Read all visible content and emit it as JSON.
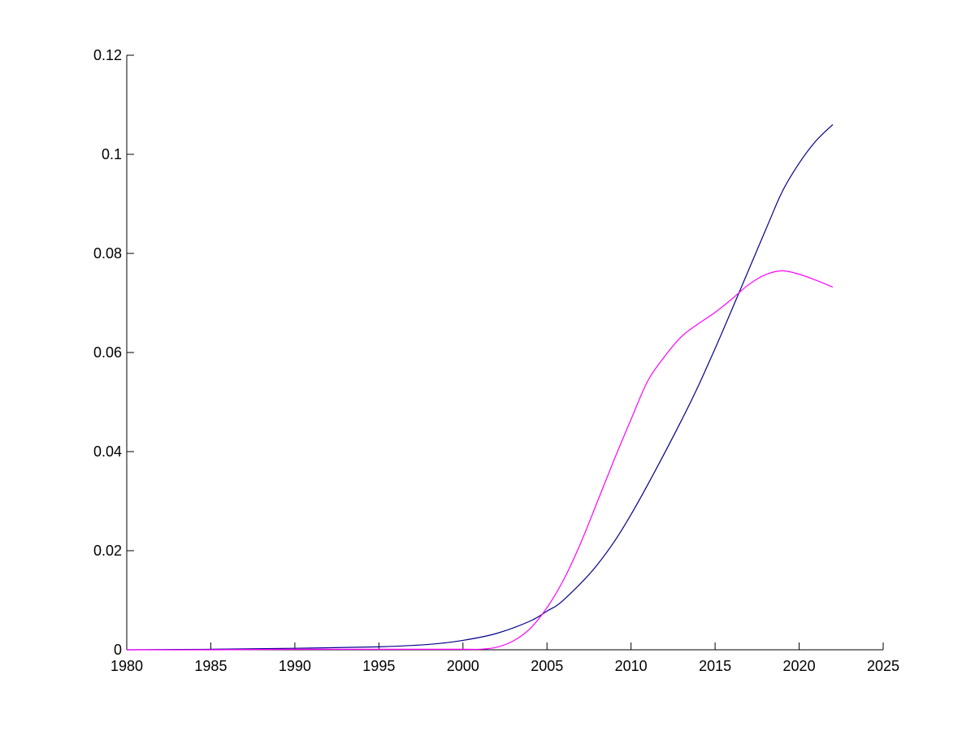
{
  "chart_data": {
    "type": "line",
    "title": "",
    "xlabel": "",
    "ylabel": "",
    "xlim": [
      1980,
      2025
    ],
    "ylim": [
      0,
      0.12
    ],
    "xticks": [
      1980,
      1985,
      1990,
      1995,
      2000,
      2005,
      2010,
      2015,
      2020,
      2025
    ],
    "xtick_labels": [
      "1980",
      "1985",
      "1990",
      "1995",
      "2000",
      "2005",
      "2010",
      "2015",
      "2020",
      "2025"
    ],
    "yticks": [
      0,
      0.02,
      0.04,
      0.06,
      0.08,
      0.1,
      0.12
    ],
    "ytick_labels": [
      "0",
      "0.02",
      "0.04",
      "0.06",
      "0.08",
      "0.1",
      "0.12"
    ],
    "grid": false,
    "legend": "none",
    "series": [
      {
        "color": "#00008b",
        "x": [
          1980,
          1985,
          1990,
          1995,
          1998,
          2000,
          2002,
          2004,
          2005,
          2006,
          2008,
          2010,
          2013,
          2015,
          2018,
          2019,
          2020,
          2021,
          2022
        ],
        "y": [
          0,
          0.0001,
          0.0003,
          0.0006,
          0.0011,
          0.0019,
          0.0033,
          0.0058,
          0.0078,
          0.0101,
          0.0172,
          0.0273,
          0.0463,
          0.0608,
          0.0847,
          0.0925,
          0.0982,
          0.1027,
          0.106
        ]
      },
      {
        "color": "#ff00ff",
        "x": [
          1980,
          1985,
          1990,
          1995,
          2000,
          2001,
          2002,
          2003,
          2004,
          2005,
          2006,
          2007,
          2008,
          2009,
          2010,
          2011,
          2012,
          2013,
          2014,
          2015,
          2016,
          2017,
          2018,
          2019,
          2020,
          2021,
          2022
        ],
        "y": [
          0,
          0,
          0.0001,
          0.0001,
          0.0001,
          0.0001,
          0.0005,
          0.0018,
          0.0043,
          0.0085,
          0.0142,
          0.0215,
          0.0299,
          0.0384,
          0.0465,
          0.0543,
          0.0592,
          0.0632,
          0.0658,
          0.0681,
          0.0708,
          0.0737,
          0.0757,
          0.0765,
          0.0758,
          0.0746,
          0.0732
        ]
      }
    ]
  }
}
